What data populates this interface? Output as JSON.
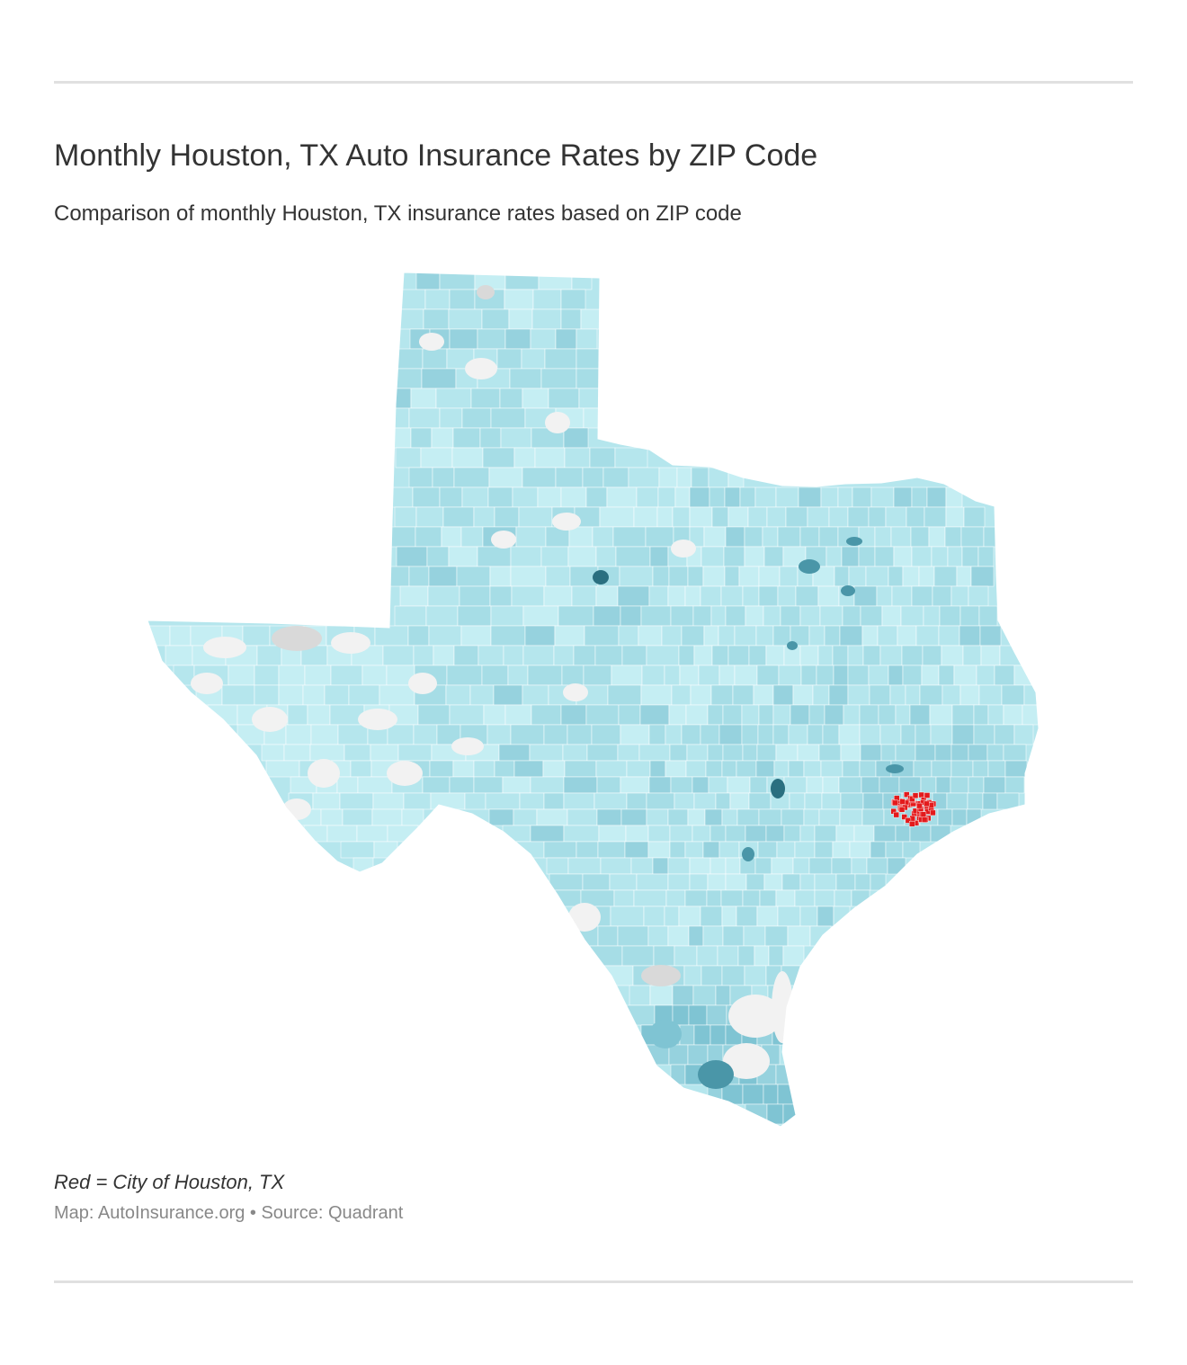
{
  "header": {
    "title": "Monthly Houston, TX Auto Insurance Rates by ZIP Code",
    "subtitle": "Comparison of monthly Houston, TX insurance rates based on ZIP code"
  },
  "map": {
    "region": "Texas",
    "highlight_color": "#e31a1c",
    "no_data_color": "#f2f2f2",
    "missing_color": "#d9d9d9",
    "palette": [
      "#c5eef3",
      "#b5e6ed",
      "#a6dde6",
      "#96d2de",
      "#7fc4d3",
      "#4a96a8",
      "#2a6f80"
    ]
  },
  "footer": {
    "note": "Red = City of Houston, TX",
    "credit": "Map: AutoInsurance.org • Source: Quadrant"
  }
}
